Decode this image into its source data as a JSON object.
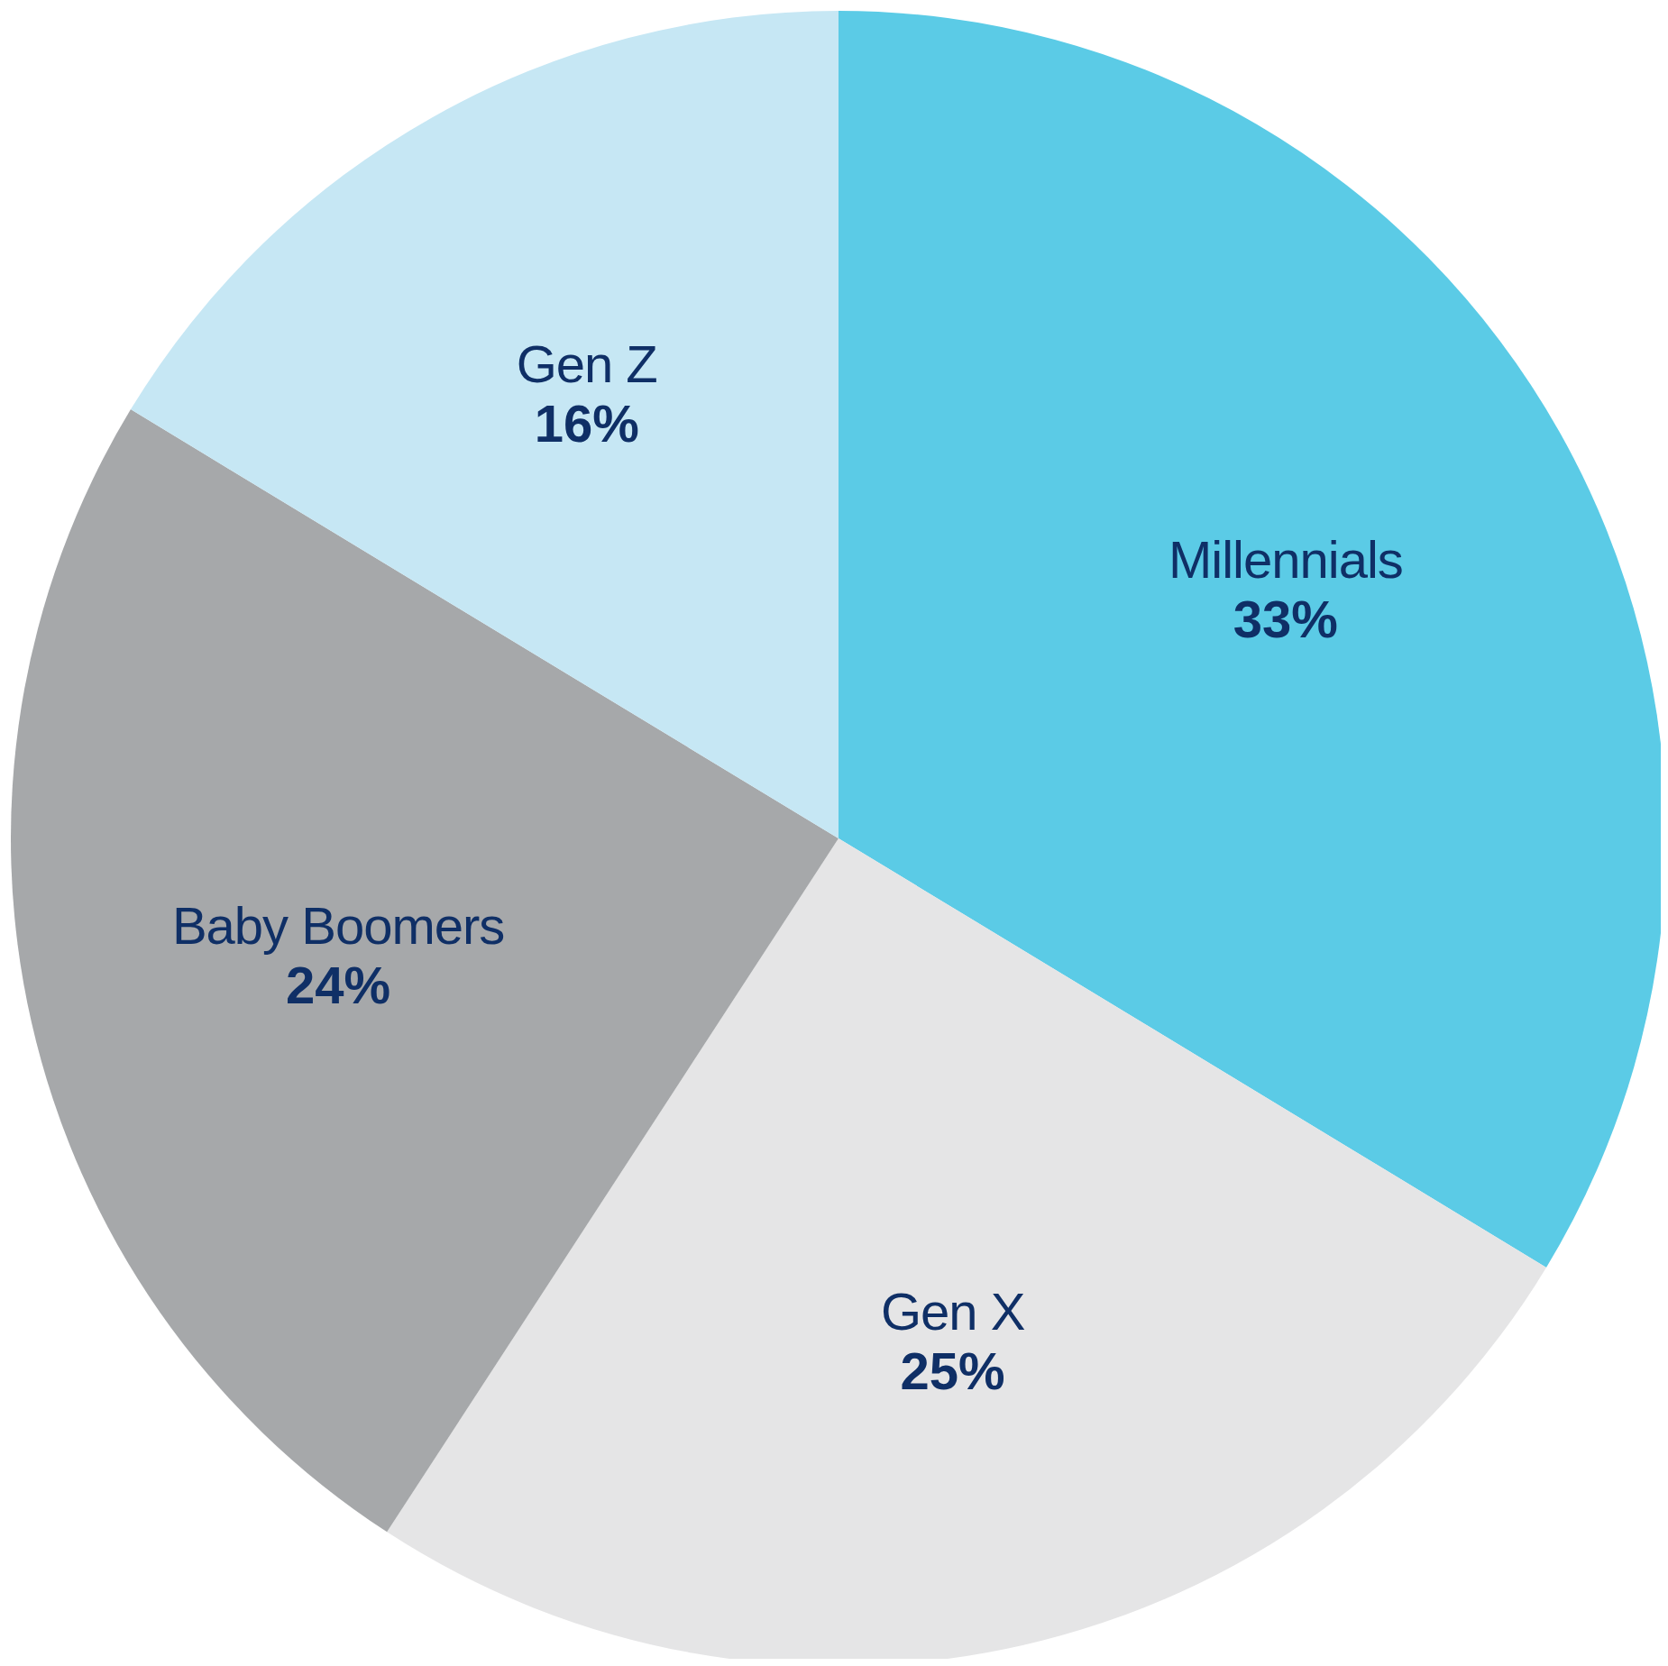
{
  "chart_data": {
    "type": "pie",
    "categories": [
      "Millennials",
      "Gen X",
      "Baby Boomers",
      "Gen Z"
    ],
    "values": [
      33,
      25,
      24,
      16
    ],
    "colors": [
      "#5bcbe6",
      "#e5e5e6",
      "#a6a8aa",
      "#c6e7f4"
    ],
    "value_labels": [
      "33%",
      "25%",
      "24%",
      "16%"
    ]
  }
}
